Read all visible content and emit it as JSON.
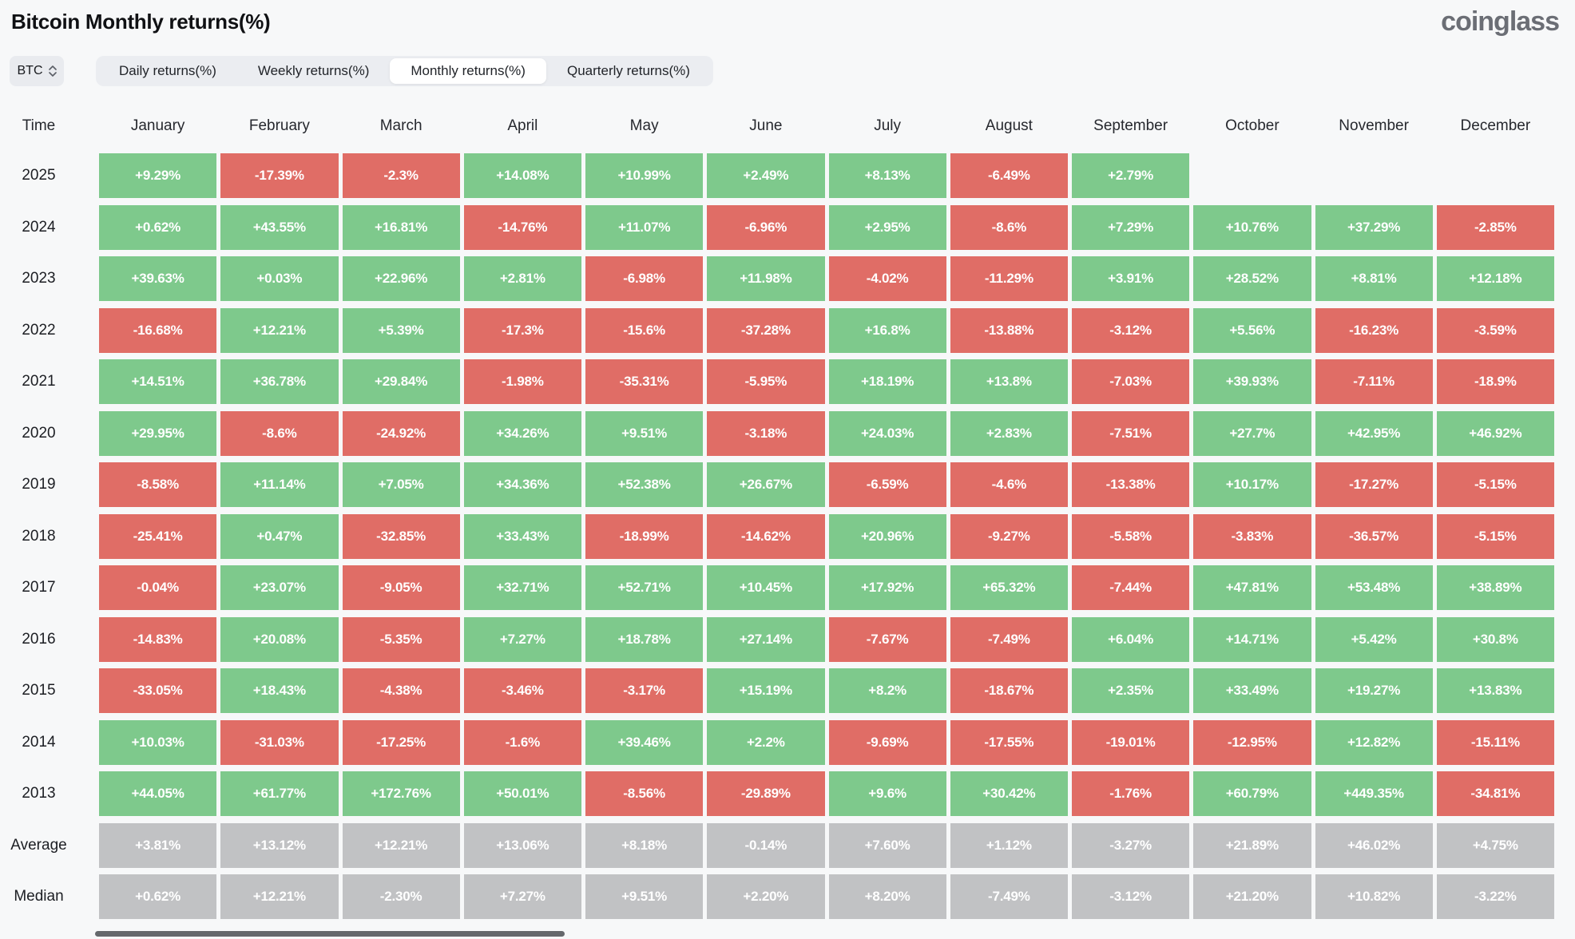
{
  "header": {
    "title": "Bitcoin Monthly returns(%)",
    "logo": "coinglass"
  },
  "controls": {
    "coin_selector": {
      "label": "BTC"
    },
    "tabs": [
      {
        "label": "Daily returns(%)",
        "selected": false
      },
      {
        "label": "Weekly returns(%)",
        "selected": false
      },
      {
        "label": "Monthly returns(%)",
        "selected": true
      },
      {
        "label": "Quarterly returns(%)",
        "selected": false
      }
    ]
  },
  "chart_data": {
    "type": "heatmap",
    "title": "Bitcoin Monthly returns(%)",
    "time_header": "Time",
    "columns": [
      "January",
      "February",
      "March",
      "April",
      "May",
      "June",
      "July",
      "August",
      "September",
      "October",
      "November",
      "December"
    ],
    "rows": [
      {
        "label": "2025",
        "style": "signed",
        "values": [
          "+9.29%",
          "-17.39%",
          "-2.3%",
          "+14.08%",
          "+10.99%",
          "+2.49%",
          "+8.13%",
          "-6.49%",
          "+2.79%",
          "",
          "",
          ""
        ]
      },
      {
        "label": "2024",
        "style": "signed",
        "values": [
          "+0.62%",
          "+43.55%",
          "+16.81%",
          "-14.76%",
          "+11.07%",
          "-6.96%",
          "+2.95%",
          "-8.6%",
          "+7.29%",
          "+10.76%",
          "+37.29%",
          "-2.85%"
        ]
      },
      {
        "label": "2023",
        "style": "signed",
        "values": [
          "+39.63%",
          "+0.03%",
          "+22.96%",
          "+2.81%",
          "-6.98%",
          "+11.98%",
          "-4.02%",
          "-11.29%",
          "+3.91%",
          "+28.52%",
          "+8.81%",
          "+12.18%"
        ]
      },
      {
        "label": "2022",
        "style": "signed",
        "values": [
          "-16.68%",
          "+12.21%",
          "+5.39%",
          "-17.3%",
          "-15.6%",
          "-37.28%",
          "+16.8%",
          "-13.88%",
          "-3.12%",
          "+5.56%",
          "-16.23%",
          "-3.59%"
        ]
      },
      {
        "label": "2021",
        "style": "signed",
        "values": [
          "+14.51%",
          "+36.78%",
          "+29.84%",
          "-1.98%",
          "-35.31%",
          "-5.95%",
          "+18.19%",
          "+13.8%",
          "-7.03%",
          "+39.93%",
          "-7.11%",
          "-18.9%"
        ]
      },
      {
        "label": "2020",
        "style": "signed",
        "values": [
          "+29.95%",
          "-8.6%",
          "-24.92%",
          "+34.26%",
          "+9.51%",
          "-3.18%",
          "+24.03%",
          "+2.83%",
          "-7.51%",
          "+27.7%",
          "+42.95%",
          "+46.92%"
        ]
      },
      {
        "label": "2019",
        "style": "signed",
        "values": [
          "-8.58%",
          "+11.14%",
          "+7.05%",
          "+34.36%",
          "+52.38%",
          "+26.67%",
          "-6.59%",
          "-4.6%",
          "-13.38%",
          "+10.17%",
          "-17.27%",
          "-5.15%"
        ]
      },
      {
        "label": "2018",
        "style": "signed",
        "values": [
          "-25.41%",
          "+0.47%",
          "-32.85%",
          "+33.43%",
          "-18.99%",
          "-14.62%",
          "+20.96%",
          "-9.27%",
          "-5.58%",
          "-3.83%",
          "-36.57%",
          "-5.15%"
        ]
      },
      {
        "label": "2017",
        "style": "signed",
        "values": [
          "-0.04%",
          "+23.07%",
          "-9.05%",
          "+32.71%",
          "+52.71%",
          "+10.45%",
          "+17.92%",
          "+65.32%",
          "-7.44%",
          "+47.81%",
          "+53.48%",
          "+38.89%"
        ]
      },
      {
        "label": "2016",
        "style": "signed",
        "values": [
          "-14.83%",
          "+20.08%",
          "-5.35%",
          "+7.27%",
          "+18.78%",
          "+27.14%",
          "-7.67%",
          "-7.49%",
          "+6.04%",
          "+14.71%",
          "+5.42%",
          "+30.8%"
        ]
      },
      {
        "label": "2015",
        "style": "signed",
        "values": [
          "-33.05%",
          "+18.43%",
          "-4.38%",
          "-3.46%",
          "-3.17%",
          "+15.19%",
          "+8.2%",
          "-18.67%",
          "+2.35%",
          "+33.49%",
          "+19.27%",
          "+13.83%"
        ]
      },
      {
        "label": "2014",
        "style": "signed",
        "values": [
          "+10.03%",
          "-31.03%",
          "-17.25%",
          "-1.6%",
          "+39.46%",
          "+2.2%",
          "-9.69%",
          "-17.55%",
          "-19.01%",
          "-12.95%",
          "+12.82%",
          "-15.11%"
        ]
      },
      {
        "label": "2013",
        "style": "signed",
        "values": [
          "+44.05%",
          "+61.77%",
          "+172.76%",
          "+50.01%",
          "-8.56%",
          "-29.89%",
          "+9.6%",
          "+30.42%",
          "-1.76%",
          "+60.79%",
          "+449.35%",
          "-34.81%"
        ]
      },
      {
        "label": "Average",
        "style": "neutral",
        "values": [
          "+3.81%",
          "+13.12%",
          "+12.21%",
          "+13.06%",
          "+8.18%",
          "-0.14%",
          "+7.60%",
          "+1.12%",
          "-3.27%",
          "+21.89%",
          "+46.02%",
          "+4.75%"
        ]
      },
      {
        "label": "Median",
        "style": "neutral",
        "values": [
          "+0.62%",
          "+12.21%",
          "-2.30%",
          "+7.27%",
          "+9.51%",
          "+2.20%",
          "+8.20%",
          "-7.49%",
          "-3.12%",
          "+21.20%",
          "+10.82%",
          "-3.22%"
        ]
      }
    ],
    "colors": {
      "positive": "#7ec98c",
      "negative": "#e06d66",
      "neutral": "#c1c2c4"
    }
  }
}
